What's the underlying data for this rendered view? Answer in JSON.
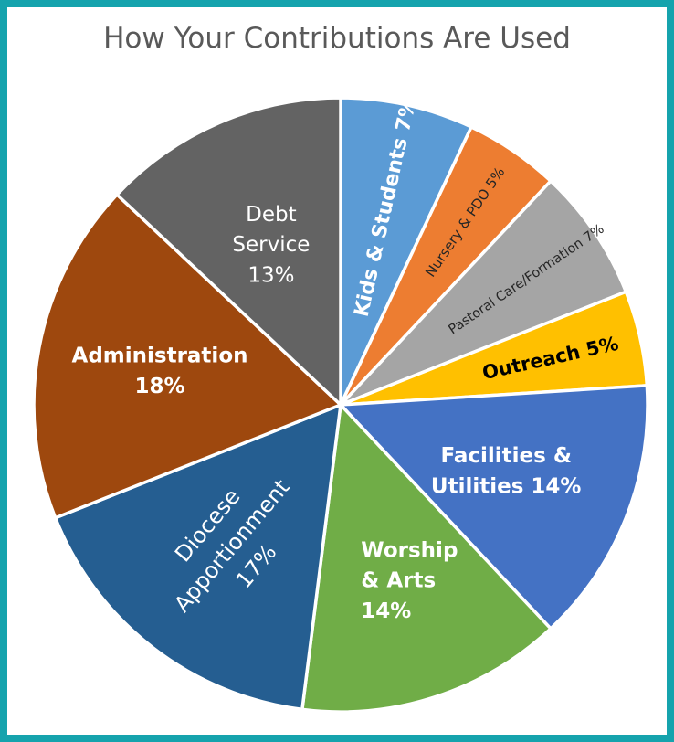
{
  "chart_data": {
    "type": "pie",
    "title": "How Your Contributions Are Used",
    "slices": [
      {
        "label": "Kids & Students 7%",
        "value": 7,
        "color": "#5b9bd5",
        "text_color": "#ffffff"
      },
      {
        "label": "Nursery & PDO 5%",
        "value": 5,
        "color": "#ed7d31",
        "text_color": "#262626"
      },
      {
        "label": "Pastoral Care/Formation 7%",
        "value": 7,
        "color": "#a5a5a5",
        "text_color": "#262626"
      },
      {
        "label": "Outreach 5%",
        "value": 5,
        "color": "#ffc000",
        "text_color": "#000000"
      },
      {
        "label": "Facilities & Utilities 14%",
        "value": 14,
        "color": "#4472c4",
        "text_color": "#ffffff"
      },
      {
        "label": "Worship & Arts 14%",
        "value": 14,
        "color": "#70ad47",
        "text_color": "#ffffff"
      },
      {
        "label": "Diocese Apportionment 17%",
        "value": 17,
        "color": "#255e91",
        "text_color": "#ffffff"
      },
      {
        "label": "Administration 18%",
        "value": 18,
        "color": "#9e480e",
        "text_color": "#ffffff"
      },
      {
        "label": "Debt Service 13%",
        "value": 13,
        "color": "#636363",
        "text_color": "#ffffff"
      }
    ]
  },
  "frame_color": "#15a3ad"
}
